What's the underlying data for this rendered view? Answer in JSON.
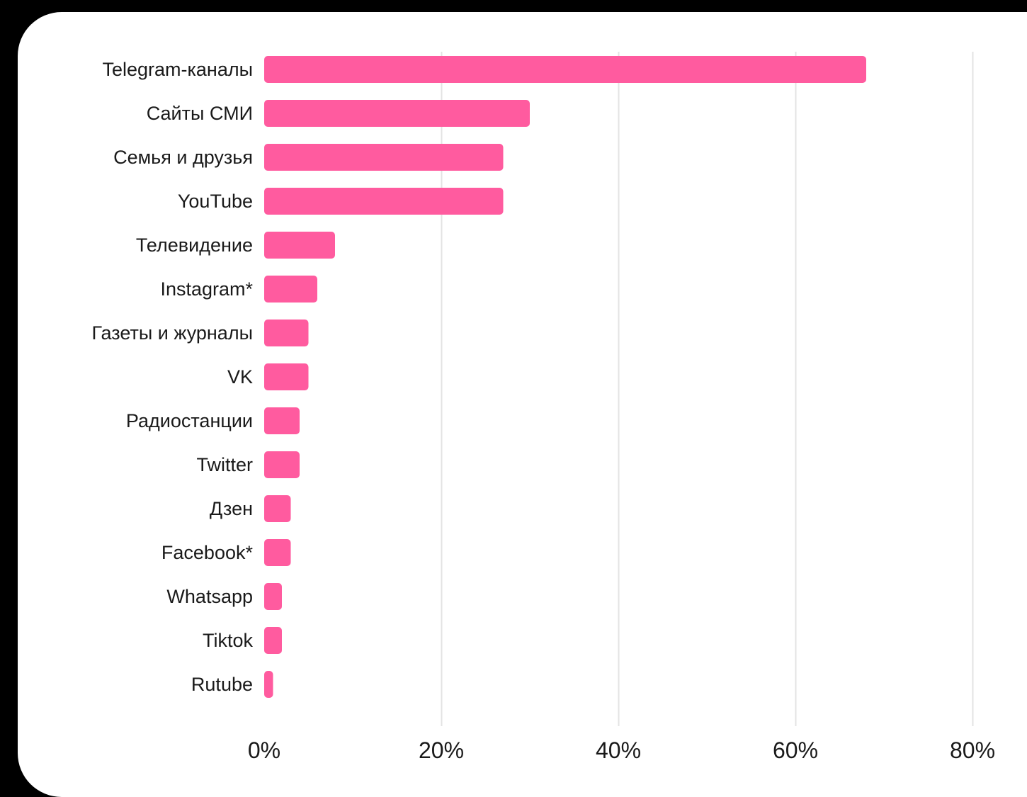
{
  "chart_data": {
    "type": "bar",
    "orientation": "horizontal",
    "categories": [
      "Telegram-каналы",
      "Сайты СМИ",
      "Семья и друзья",
      "YouTube",
      "Телевидение",
      "Instagram*",
      "Газеты и журналы",
      "VK",
      "Радиостанции",
      "Twitter",
      "Дзен",
      "Facebook*",
      "Whatsapp",
      "Tiktok",
      "Rutube"
    ],
    "values": [
      68,
      30,
      27,
      27,
      8,
      6,
      5,
      5,
      4,
      4,
      3,
      3,
      2,
      2,
      1
    ],
    "xlim": [
      0,
      80
    ],
    "x_ticks": [
      0,
      20,
      40,
      60,
      80
    ],
    "x_tick_labels": [
      "0%",
      "20%",
      "40%",
      "60%",
      "80%"
    ],
    "grid": true,
    "bar_color": "#ff5b9f",
    "title": "",
    "xlabel": "",
    "ylabel": ""
  },
  "colors": {
    "background": "#000000",
    "card": "#ffffff",
    "bar": "#ff5b9f",
    "grid": "#e3e3e3",
    "text": "#1a1a1a"
  }
}
